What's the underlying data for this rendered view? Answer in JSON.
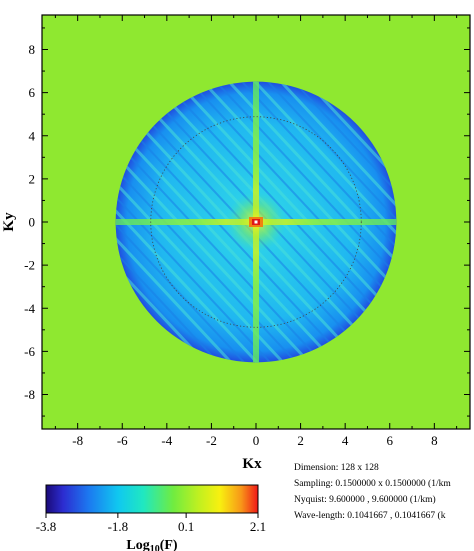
{
  "chart_data": {
    "type": "heatmap",
    "title": "",
    "xlabel": "Kx",
    "ylabel": "Ky",
    "xlim": [
      -9.6,
      9.6
    ],
    "ylim": [
      -9.6,
      9.6
    ],
    "xticks": [
      -8,
      -6,
      -4,
      -2,
      0,
      2,
      4,
      6,
      8
    ],
    "yticks": [
      8,
      6,
      4,
      2,
      0,
      -2,
      -4,
      -6,
      -8
    ],
    "description_values": {
      "disk_radius": 6.4,
      "dotted_circle_radius": 4.8,
      "background_value": 0.1,
      "peak_value": 2.1,
      "peak_location": [
        0,
        0
      ]
    },
    "colorbar": {
      "label_main": "Log",
      "label_sub": "10",
      "label_tail": "(F)",
      "min": -3.8,
      "max": 2.1,
      "ticks": [
        "-3.8",
        "-1.8",
        "0.1",
        "2.1"
      ],
      "tick_values": [
        -3.8,
        -1.8,
        0.1,
        2.1
      ]
    },
    "info": {
      "dimension": "Dimension:  128 x  128",
      "sampling": "Sampling:  0.1500000  x 0.1500000 (1/km",
      "nyquist": "Nyquist:   9.600000  ,  9.600000 (1/km)",
      "wavelength": "Wave-length:  0.1041667  ,  0.1041667 (k"
    }
  },
  "colors": {
    "background_field": "#8fe830",
    "plot_frame": "#000000"
  }
}
